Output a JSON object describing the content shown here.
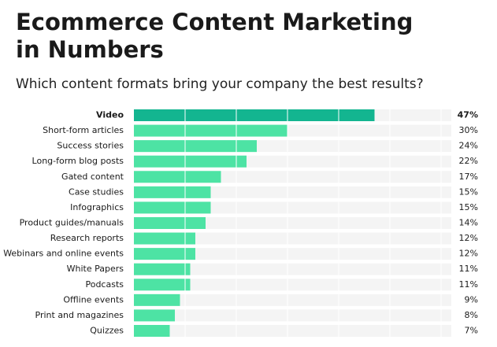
{
  "chart_data": {
    "type": "bar",
    "orientation": "horizontal",
    "title": "Ecommerce Content Marketing in Numbers",
    "subtitle": "Which content formats bring your company the best results?",
    "categories": [
      "Video",
      "Short-form articles",
      "Success stories",
      "Long-form blog posts",
      "Gated content",
      "Case studies",
      "Infographics",
      "Product guides/manuals",
      "Research reports",
      "Webinars and online events",
      "White Papers",
      "Podcasts",
      "Offline events",
      "Print and magazines",
      "Quizzes"
    ],
    "values": [
      47,
      30,
      24,
      22,
      17,
      15,
      15,
      14,
      12,
      12,
      11,
      11,
      9,
      8,
      7
    ],
    "value_labels": [
      "47%",
      "30%",
      "24%",
      "22%",
      "17%",
      "15%",
      "15%",
      "14%",
      "12%",
      "12%",
      "11%",
      "11%",
      "9%",
      "8%",
      "7%"
    ],
    "color": "#4de3a4",
    "highlight_color": "#13b590",
    "highlight_index": 0,
    "xlim": [
      0,
      62
    ],
    "xticks": [
      10,
      20,
      30,
      40,
      50,
      60
    ],
    "grid": true
  }
}
